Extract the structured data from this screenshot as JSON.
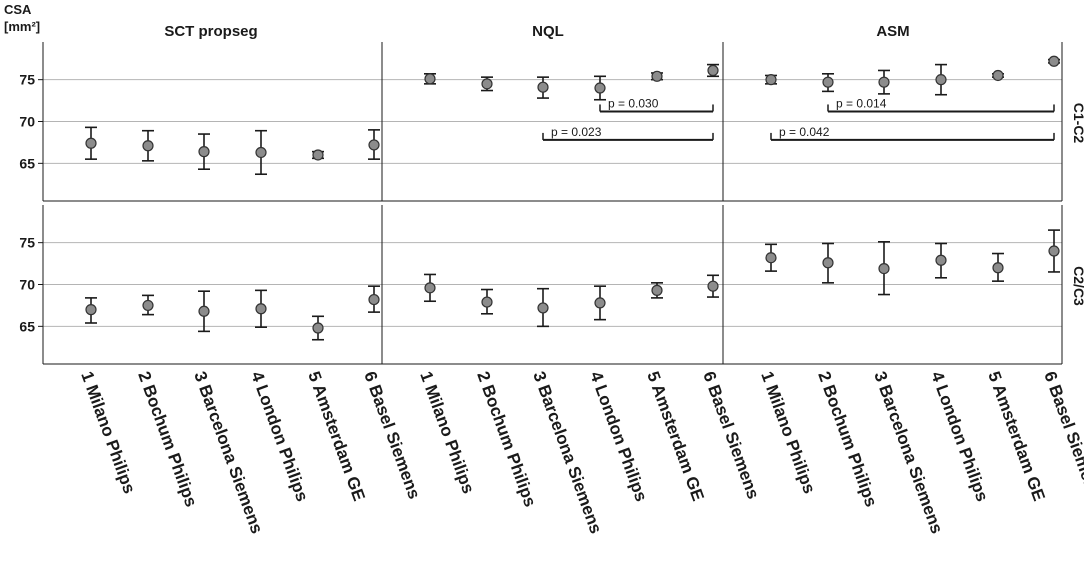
{
  "chart_data": {
    "type": "scatter",
    "y_axis_label": [
      "CSA",
      "[mm²]"
    ],
    "columns": [
      "SCT propseg",
      "NQL",
      "ASM"
    ],
    "rows": [
      "C1-C2",
      "C2/C3"
    ],
    "categories": [
      "1 Milano Philips",
      "2 Bochum Philips",
      "3 Barcelona Siemens",
      "4 London Philips",
      "5 Amsterdam GE",
      "6 Basel Siemens"
    ],
    "ylim": [
      60.5,
      79.5
    ],
    "yticks": [
      65,
      70,
      75
    ],
    "grid": true,
    "panels": [
      {
        "row": "C1-C2",
        "column": "SCT propseg",
        "mean": [
          67.4,
          67.1,
          66.4,
          66.3,
          66.0,
          67.2
        ],
        "lower": [
          65.5,
          65.3,
          64.3,
          63.7,
          65.6,
          65.5
        ],
        "upper": [
          69.3,
          68.9,
          68.5,
          68.9,
          66.4,
          69.0
        ],
        "significance": []
      },
      {
        "row": "C1-C2",
        "column": "NQL",
        "mean": [
          75.1,
          74.5,
          74.1,
          74.0,
          75.4,
          76.1
        ],
        "lower": [
          74.5,
          73.7,
          72.8,
          72.6,
          75.0,
          75.4
        ],
        "upper": [
          75.7,
          75.3,
          75.3,
          75.4,
          75.8,
          76.8
        ],
        "significance": [
          {
            "from": 4,
            "to": 6,
            "label": "p = 0.030",
            "y": 71.2
          },
          {
            "from": 3,
            "to": 6,
            "label": "p = 0.023",
            "y": 67.8
          }
        ]
      },
      {
        "row": "C1-C2",
        "column": "ASM",
        "mean": [
          75.0,
          74.7,
          74.7,
          75.0,
          75.5,
          77.2
        ],
        "lower": [
          74.5,
          73.6,
          73.3,
          73.2,
          75.3,
          77.0
        ],
        "upper": [
          75.5,
          75.7,
          76.1,
          76.8,
          75.7,
          77.4
        ],
        "significance": [
          {
            "from": 2,
            "to": 6,
            "label": "p = 0.014",
            "y": 71.2
          },
          {
            "from": 1,
            "to": 6,
            "label": "p = 0.042",
            "y": 67.8
          }
        ]
      },
      {
        "row": "C2/C3",
        "column": "SCT propseg",
        "mean": [
          67.0,
          67.5,
          66.8,
          67.1,
          64.8,
          68.2
        ],
        "lower": [
          65.4,
          66.4,
          64.4,
          64.9,
          63.4,
          66.7
        ],
        "upper": [
          68.4,
          68.7,
          69.2,
          69.3,
          66.2,
          69.8
        ],
        "significance": []
      },
      {
        "row": "C2/C3",
        "column": "NQL",
        "mean": [
          69.6,
          67.9,
          67.2,
          67.8,
          69.3,
          69.8
        ],
        "lower": [
          68.0,
          66.5,
          65.0,
          65.8,
          68.4,
          68.5
        ],
        "upper": [
          71.2,
          69.4,
          69.5,
          69.8,
          70.2,
          71.1
        ],
        "significance": []
      },
      {
        "row": "C2/C3",
        "column": "ASM",
        "mean": [
          73.2,
          72.6,
          71.9,
          72.9,
          72.0,
          74.0
        ],
        "lower": [
          71.6,
          70.2,
          68.8,
          70.8,
          70.4,
          71.5
        ],
        "upper": [
          74.8,
          74.9,
          75.1,
          74.9,
          73.7,
          76.5
        ],
        "significance": []
      }
    ]
  },
  "colors": {
    "marker_fill": "#8c8c8c",
    "marker_stroke": "#333333",
    "errorbar": "#1a1a1a",
    "gridline": "#b4b4b4",
    "frame": "#1a1a1a",
    "text": "#1a1a1a"
  }
}
